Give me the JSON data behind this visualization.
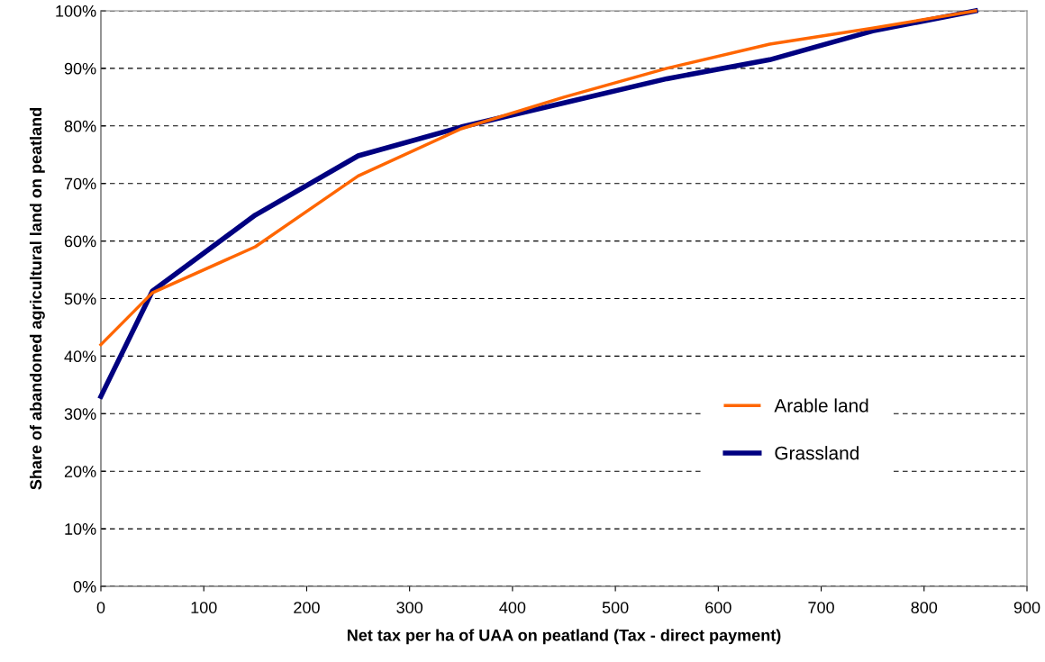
{
  "chart_data": {
    "type": "line",
    "xlabel": "Net tax per ha of UAA on peatland (Tax - direct payment)",
    "ylabel": "Share of abandoned agricultural land on peatland",
    "x": [
      0,
      50,
      150,
      250,
      350,
      450,
      550,
      650,
      750,
      850
    ],
    "series": [
      {
        "name": "Arable land",
        "color": "#ff6600",
        "values": [
          42,
          51,
          59,
          71.3,
          79.5,
          85,
          90,
          94.2,
          97,
          100
        ]
      },
      {
        "name": "Grassland",
        "color": "#000080",
        "values": [
          33,
          51.3,
          64.5,
          74.8,
          79.8,
          84,
          88.2,
          91.5,
          96.5,
          100
        ]
      }
    ],
    "xlim": [
      0,
      900
    ],
    "xticks": [
      0,
      100,
      200,
      300,
      400,
      500,
      600,
      700,
      800,
      900
    ],
    "ylim": [
      0,
      100
    ],
    "yticks": [
      {
        "value": 0,
        "label": "0%"
      },
      {
        "value": 10,
        "label": "10%"
      },
      {
        "value": 20,
        "label": "20%"
      },
      {
        "value": 30,
        "label": "30%"
      },
      {
        "value": 40,
        "label": "40%"
      },
      {
        "value": 50,
        "label": "50%"
      },
      {
        "value": 60,
        "label": "60%"
      },
      {
        "value": 70,
        "label": "70%"
      },
      {
        "value": 80,
        "label": "80%"
      },
      {
        "value": 90,
        "label": "90%"
      },
      {
        "value": 100,
        "label": "100%"
      }
    ],
    "grid": "y",
    "legend": "right",
    "marker": "none",
    "line_style": "solid"
  }
}
